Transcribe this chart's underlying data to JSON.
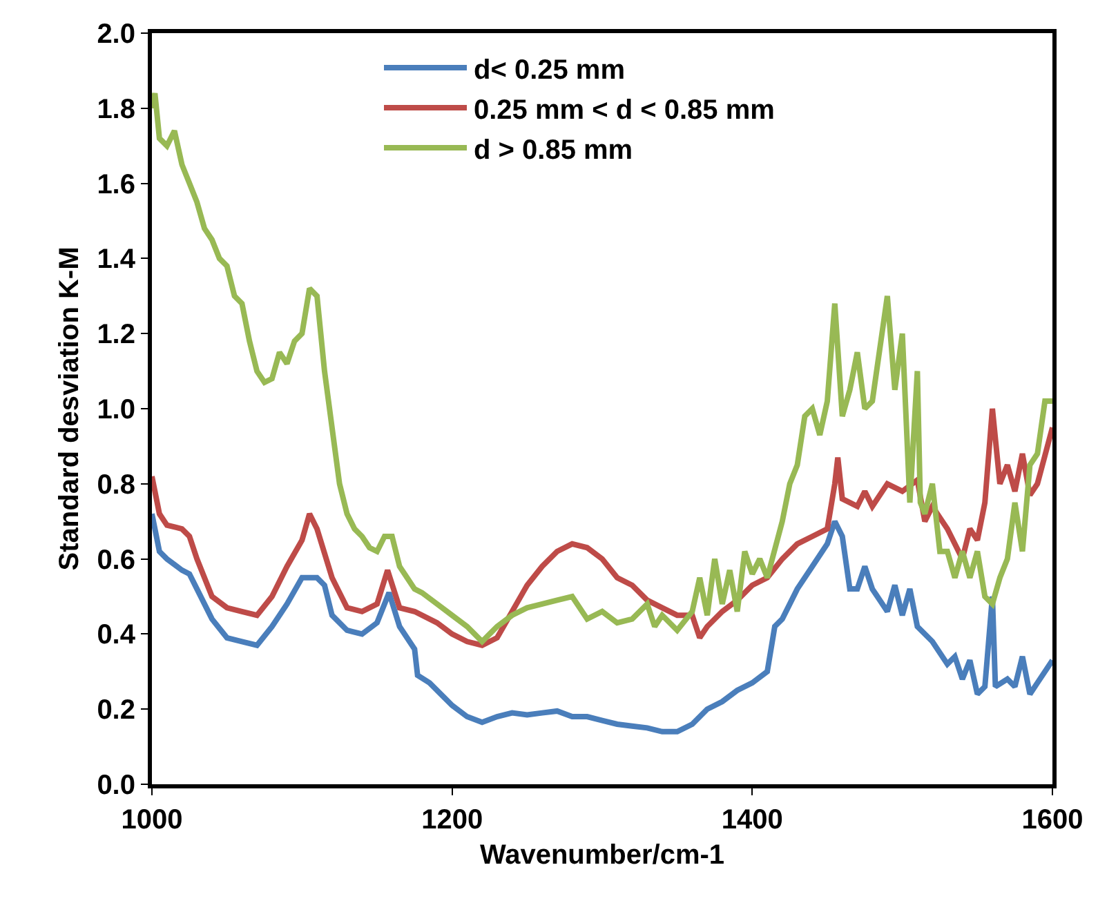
{
  "chart_data": {
    "type": "line",
    "xlabel": "Wavenumber/cm-1",
    "ylabel": "Standard desviation K-M",
    "xlim": [
      1000,
      1600
    ],
    "xticks": [
      1000,
      1200,
      1400,
      1600
    ],
    "ylim": [
      0,
      2
    ],
    "yticks": [
      {
        "value": 0,
        "label": "0.0"
      },
      0.2,
      0.4,
      0.6,
      0.8,
      {
        "value": 1,
        "label": "1.0"
      },
      1.2,
      1.4,
      1.6,
      1.8,
      {
        "value": 2,
        "label": "2.0"
      }
    ],
    "legend": "top",
    "marker": "none",
    "line_style": "solid",
    "series": [
      {
        "name": "d< 0.25 mm",
        "color": "#4a7ebb",
        "x": [
          1000,
          1005,
          1010,
          1020,
          1025,
          1030,
          1040,
          1050,
          1060,
          1070,
          1080,
          1090,
          1100,
          1110,
          1115,
          1120,
          1130,
          1140,
          1150,
          1158,
          1165,
          1175,
          1177,
          1185,
          1195,
          1200,
          1210,
          1220,
          1230,
          1240,
          1250,
          1260,
          1270,
          1280,
          1290,
          1300,
          1310,
          1320,
          1330,
          1340,
          1350,
          1360,
          1370,
          1380,
          1390,
          1400,
          1410,
          1415,
          1420,
          1430,
          1440,
          1450,
          1455,
          1460,
          1465,
          1470,
          1475,
          1480,
          1490,
          1495,
          1500,
          1505,
          1510,
          1520,
          1530,
          1535,
          1540,
          1545,
          1550,
          1555,
          1560,
          1562,
          1570,
          1575,
          1580,
          1585,
          1590,
          1600
        ],
        "values": [
          0.72,
          0.62,
          0.6,
          0.57,
          0.56,
          0.52,
          0.44,
          0.39,
          0.38,
          0.37,
          0.42,
          0.48,
          0.55,
          0.55,
          0.53,
          0.45,
          0.41,
          0.4,
          0.43,
          0.51,
          0.42,
          0.36,
          0.29,
          0.27,
          0.23,
          0.21,
          0.18,
          0.165,
          0.18,
          0.19,
          0.185,
          0.19,
          0.195,
          0.18,
          0.18,
          0.17,
          0.16,
          0.155,
          0.15,
          0.14,
          0.14,
          0.16,
          0.2,
          0.22,
          0.25,
          0.27,
          0.3,
          0.42,
          0.44,
          0.52,
          0.58,
          0.64,
          0.7,
          0.66,
          0.52,
          0.52,
          0.58,
          0.52,
          0.46,
          0.53,
          0.45,
          0.52,
          0.42,
          0.38,
          0.32,
          0.34,
          0.28,
          0.33,
          0.24,
          0.26,
          0.5,
          0.26,
          0.28,
          0.26,
          0.34,
          0.24,
          0.27,
          0.33
        ]
      },
      {
        "name": "0.25 mm < d < 0.85 mm",
        "color": "#be4b48",
        "x": [
          1000,
          1005,
          1010,
          1020,
          1025,
          1030,
          1040,
          1050,
          1060,
          1070,
          1080,
          1090,
          1100,
          1105,
          1110,
          1120,
          1130,
          1140,
          1150,
          1157,
          1165,
          1175,
          1190,
          1200,
          1210,
          1220,
          1230,
          1240,
          1250,
          1260,
          1270,
          1280,
          1290,
          1300,
          1310,
          1320,
          1330,
          1340,
          1350,
          1360,
          1365,
          1370,
          1380,
          1390,
          1400,
          1410,
          1420,
          1430,
          1440,
          1450,
          1455,
          1457,
          1460,
          1470,
          1475,
          1480,
          1490,
          1500,
          1510,
          1515,
          1520,
          1530,
          1540,
          1545,
          1550,
          1555,
          1560,
          1565,
          1570,
          1575,
          1580,
          1585,
          1590,
          1600
        ],
        "values": [
          0.82,
          0.72,
          0.69,
          0.68,
          0.66,
          0.6,
          0.5,
          0.47,
          0.46,
          0.45,
          0.5,
          0.58,
          0.65,
          0.72,
          0.68,
          0.55,
          0.47,
          0.46,
          0.48,
          0.57,
          0.47,
          0.46,
          0.43,
          0.4,
          0.38,
          0.37,
          0.39,
          0.46,
          0.53,
          0.58,
          0.62,
          0.64,
          0.63,
          0.6,
          0.55,
          0.53,
          0.49,
          0.47,
          0.45,
          0.45,
          0.39,
          0.42,
          0.46,
          0.49,
          0.53,
          0.55,
          0.6,
          0.64,
          0.66,
          0.68,
          0.8,
          0.87,
          0.76,
          0.74,
          0.78,
          0.74,
          0.8,
          0.78,
          0.81,
          0.7,
          0.74,
          0.68,
          0.6,
          0.68,
          0.65,
          0.75,
          1.0,
          0.8,
          0.85,
          0.78,
          0.88,
          0.77,
          0.8,
          0.95
        ]
      },
      {
        "name": "d > 0.85 mm",
        "color": "#98b954",
        "x": [
          1000,
          1002,
          1005,
          1010,
          1015,
          1020,
          1025,
          1030,
          1035,
          1040,
          1045,
          1050,
          1055,
          1060,
          1065,
          1070,
          1075,
          1080,
          1085,
          1090,
          1095,
          1100,
          1105,
          1110,
          1115,
          1120,
          1125,
          1130,
          1135,
          1140,
          1145,
          1150,
          1155,
          1160,
          1165,
          1170,
          1175,
          1180,
          1190,
          1200,
          1210,
          1215,
          1220,
          1225,
          1230,
          1240,
          1250,
          1260,
          1270,
          1280,
          1290,
          1300,
          1310,
          1320,
          1330,
          1335,
          1340,
          1350,
          1360,
          1365,
          1370,
          1375,
          1380,
          1385,
          1390,
          1395,
          1400,
          1405,
          1410,
          1420,
          1425,
          1430,
          1435,
          1440,
          1445,
          1450,
          1455,
          1460,
          1465,
          1470,
          1475,
          1480,
          1490,
          1495,
          1500,
          1505,
          1510,
          1512,
          1515,
          1520,
          1525,
          1530,
          1535,
          1540,
          1545,
          1550,
          1555,
          1560,
          1565,
          1570,
          1575,
          1580,
          1585,
          1590,
          1595,
          1600
        ],
        "values": [
          1.8,
          1.84,
          1.72,
          1.7,
          1.74,
          1.65,
          1.6,
          1.55,
          1.48,
          1.45,
          1.4,
          1.38,
          1.3,
          1.28,
          1.18,
          1.1,
          1.07,
          1.08,
          1.15,
          1.12,
          1.18,
          1.2,
          1.32,
          1.3,
          1.1,
          0.95,
          0.8,
          0.72,
          0.68,
          0.66,
          0.63,
          0.62,
          0.66,
          0.66,
          0.58,
          0.55,
          0.52,
          0.51,
          0.48,
          0.45,
          0.42,
          0.4,
          0.38,
          0.4,
          0.42,
          0.45,
          0.47,
          0.48,
          0.49,
          0.5,
          0.44,
          0.46,
          0.43,
          0.44,
          0.48,
          0.42,
          0.45,
          0.41,
          0.46,
          0.55,
          0.45,
          0.6,
          0.48,
          0.57,
          0.46,
          0.62,
          0.56,
          0.6,
          0.55,
          0.7,
          0.8,
          0.85,
          0.98,
          1.0,
          0.93,
          1.02,
          1.28,
          0.98,
          1.05,
          1.15,
          1.0,
          1.02,
          1.3,
          1.05,
          1.2,
          0.75,
          1.1,
          0.75,
          0.72,
          0.8,
          0.62,
          0.62,
          0.55,
          0.62,
          0.55,
          0.62,
          0.5,
          0.48,
          0.55,
          0.6,
          0.75,
          0.62,
          0.85,
          0.88,
          1.02,
          1.02
        ]
      }
    ]
  }
}
